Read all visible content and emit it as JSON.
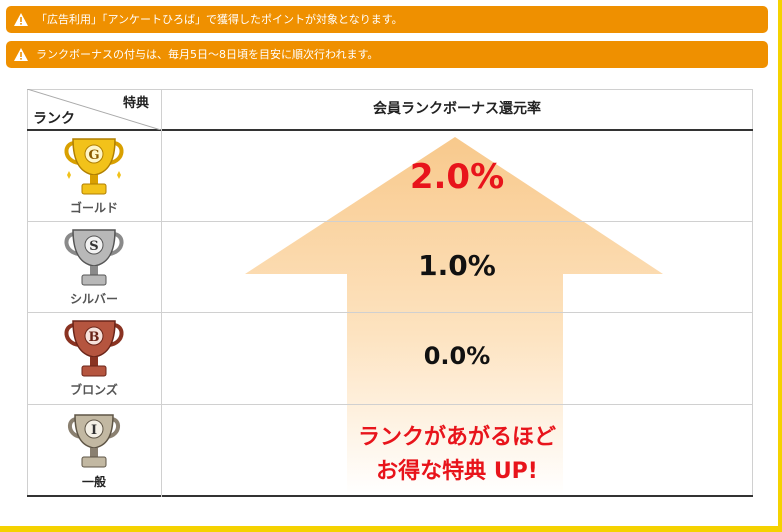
{
  "notices": [
    "「広告利用」「アンケートひろば」で獲得したポイントが対象となります。",
    "ランクボーナスの付与は、毎月5日〜8日頃を目安に順次行われます。"
  ],
  "table": {
    "corner_top": "特典",
    "corner_bottom": "ランク",
    "column_header": "会員ランクボーナス還元率",
    "rows": [
      {
        "rank": "ゴールド",
        "letter": "G",
        "rate": "2.0%"
      },
      {
        "rank": "シルバー",
        "letter": "S",
        "rate": "1.0%"
      },
      {
        "rank": "ブロンズ",
        "letter": "B",
        "rate": "0.0%"
      },
      {
        "rank": "一般",
        "letter": "I",
        "rate": ""
      }
    ],
    "slogan_line1": "ランクがあがるほど",
    "slogan_line2": "お得な特典 UP!"
  },
  "icons": {
    "notice": "warning-icon",
    "trophies": [
      "gold-trophy-icon",
      "silver-trophy-icon",
      "bronze-trophy-icon",
      "regular-trophy-icon"
    ],
    "arrow": "up-arrow-icon"
  },
  "colors": {
    "notice_bg": "#ef9000",
    "frame": "#f5d200",
    "highlight_red": "#e8141b",
    "gold": "#e0a800",
    "silver": "#9a9a9a",
    "bronze": "#9b3b2a",
    "regular": "#8a8070",
    "arrow": "#fbd9a8"
  }
}
